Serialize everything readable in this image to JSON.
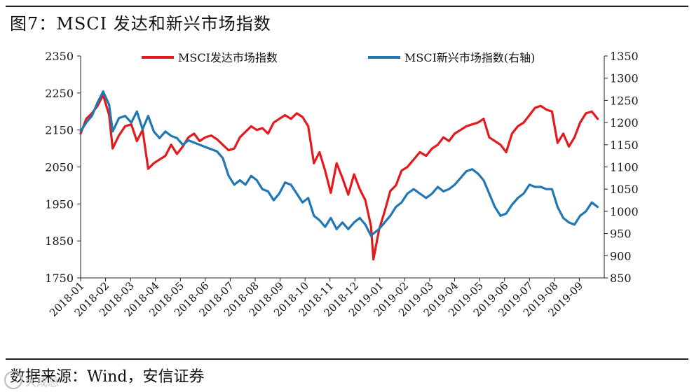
{
  "title": "图7：MSCI 发达和新兴市场指数",
  "source": "数据来源：Wind，安信证券",
  "watermark": "大成总",
  "chart_data": {
    "type": "line",
    "grid": false,
    "legend_position": "top",
    "left_axis": {
      "min": 1750,
      "max": 2350,
      "ticks": [
        1750,
        1850,
        1950,
        2050,
        2150,
        2250,
        2350
      ]
    },
    "right_axis": {
      "min": 850,
      "max": 1350,
      "ticks": [
        850,
        900,
        950,
        1000,
        1050,
        1100,
        1150,
        1200,
        1250,
        1300,
        1350
      ]
    },
    "x_start": "2018-01",
    "x_end": "2019-09",
    "x_tick_labels": [
      "2018-01",
      "2018-02",
      "2018-03",
      "2018-04",
      "2018-05",
      "2018-06",
      "2018-07",
      "2018-08",
      "2018-09",
      "2018-10",
      "2018-11",
      "2018-12",
      "2019-01",
      "2019-02",
      "2019-03",
      "2019-04",
      "2019-05",
      "2019-06",
      "2019-07",
      "2019-08",
      "2019-09"
    ],
    "series": [
      {
        "name": "MSCI发达市场指数",
        "axis": "left",
        "color": "#e3191b",
        "x": [
          "2018-01-01",
          "2018-01-08",
          "2018-01-15",
          "2018-01-22",
          "2018-01-29",
          "2018-02-05",
          "2018-02-09",
          "2018-02-16",
          "2018-02-23",
          "2018-03-02",
          "2018-03-09",
          "2018-03-16",
          "2018-03-23",
          "2018-03-30",
          "2018-04-06",
          "2018-04-13",
          "2018-04-20",
          "2018-04-27",
          "2018-05-04",
          "2018-05-11",
          "2018-05-18",
          "2018-05-25",
          "2018-06-01",
          "2018-06-08",
          "2018-06-15",
          "2018-06-22",
          "2018-06-29",
          "2018-07-06",
          "2018-07-13",
          "2018-07-20",
          "2018-07-27",
          "2018-08-03",
          "2018-08-10",
          "2018-08-17",
          "2018-08-24",
          "2018-08-31",
          "2018-09-07",
          "2018-09-14",
          "2018-09-21",
          "2018-09-28",
          "2018-10-05",
          "2018-10-12",
          "2018-10-19",
          "2018-10-26",
          "2018-11-02",
          "2018-11-09",
          "2018-11-16",
          "2018-11-23",
          "2018-11-30",
          "2018-12-07",
          "2018-12-14",
          "2018-12-21",
          "2018-12-24",
          "2018-12-31",
          "2019-01-07",
          "2019-01-14",
          "2019-01-21",
          "2019-01-28",
          "2019-02-04",
          "2019-02-11",
          "2019-02-18",
          "2019-02-25",
          "2019-03-04",
          "2019-03-11",
          "2019-03-18",
          "2019-03-25",
          "2019-04-01",
          "2019-04-08",
          "2019-04-15",
          "2019-04-22",
          "2019-04-29",
          "2019-05-06",
          "2019-05-13",
          "2019-05-20",
          "2019-05-27",
          "2019-06-03",
          "2019-06-10",
          "2019-06-17",
          "2019-06-24",
          "2019-07-01",
          "2019-07-08",
          "2019-07-15",
          "2019-07-22",
          "2019-07-29",
          "2019-08-05",
          "2019-08-12",
          "2019-08-19",
          "2019-08-26",
          "2019-09-02",
          "2019-09-09",
          "2019-09-16",
          "2019-09-23"
        ],
        "values": [
          2140,
          2180,
          2195,
          2215,
          2245,
          2190,
          2100,
          2135,
          2160,
          2165,
          2120,
          2150,
          2045,
          2060,
          2070,
          2080,
          2110,
          2085,
          2105,
          2130,
          2140,
          2120,
          2130,
          2135,
          2125,
          2110,
          2095,
          2100,
          2130,
          2145,
          2160,
          2150,
          2155,
          2140,
          2170,
          2180,
          2190,
          2180,
          2195,
          2185,
          2160,
          2060,
          2090,
          2040,
          1980,
          2060,
          2020,
          1975,
          2030,
          1990,
          1960,
          1890,
          1800,
          1880,
          1930,
          1985,
          2000,
          2040,
          2050,
          2070,
          2090,
          2080,
          2100,
          2110,
          2130,
          2120,
          2140,
          2150,
          2160,
          2165,
          2170,
          2180,
          2130,
          2120,
          2110,
          2090,
          2140,
          2160,
          2170,
          2190,
          2210,
          2215,
          2205,
          2200,
          2115,
          2140,
          2105,
          2130,
          2170,
          2195,
          2200,
          2180
        ]
      },
      {
        "name": "MSCI新兴市场指数(右轴)",
        "axis": "right",
        "color": "#1f77b4",
        "x": [
          "2018-01-01",
          "2018-01-08",
          "2018-01-15",
          "2018-01-22",
          "2018-01-29",
          "2018-02-05",
          "2018-02-09",
          "2018-02-16",
          "2018-02-23",
          "2018-03-02",
          "2018-03-09",
          "2018-03-16",
          "2018-03-23",
          "2018-03-30",
          "2018-04-06",
          "2018-04-13",
          "2018-04-20",
          "2018-04-27",
          "2018-05-04",
          "2018-05-11",
          "2018-05-18",
          "2018-05-25",
          "2018-06-01",
          "2018-06-08",
          "2018-06-15",
          "2018-06-22",
          "2018-06-29",
          "2018-07-06",
          "2018-07-13",
          "2018-07-20",
          "2018-07-27",
          "2018-08-03",
          "2018-08-10",
          "2018-08-17",
          "2018-08-24",
          "2018-08-31",
          "2018-09-07",
          "2018-09-14",
          "2018-09-21",
          "2018-09-28",
          "2018-10-05",
          "2018-10-12",
          "2018-10-19",
          "2018-10-26",
          "2018-11-02",
          "2018-11-09",
          "2018-11-16",
          "2018-11-23",
          "2018-11-30",
          "2018-12-07",
          "2018-12-14",
          "2018-12-21",
          "2018-12-24",
          "2018-12-31",
          "2019-01-07",
          "2019-01-14",
          "2019-01-21",
          "2019-01-28",
          "2019-02-04",
          "2019-02-11",
          "2019-02-18",
          "2019-02-25",
          "2019-03-04",
          "2019-03-11",
          "2019-03-18",
          "2019-03-25",
          "2019-04-01",
          "2019-04-08",
          "2019-04-15",
          "2019-04-22",
          "2019-04-29",
          "2019-05-06",
          "2019-05-13",
          "2019-05-20",
          "2019-05-27",
          "2019-06-03",
          "2019-06-10",
          "2019-06-17",
          "2019-06-24",
          "2019-07-01",
          "2019-07-08",
          "2019-07-15",
          "2019-07-22",
          "2019-07-29",
          "2019-08-05",
          "2019-08-12",
          "2019-08-19",
          "2019-08-26",
          "2019-09-02",
          "2019-09-09",
          "2019-09-16",
          "2019-09-23"
        ],
        "values": [
          1180,
          1200,
          1215,
          1245,
          1270,
          1240,
          1180,
          1210,
          1215,
          1200,
          1225,
          1185,
          1215,
          1180,
          1165,
          1180,
          1170,
          1165,
          1150,
          1160,
          1155,
          1150,
          1145,
          1140,
          1135,
          1120,
          1080,
          1060,
          1070,
          1060,
          1080,
          1070,
          1050,
          1045,
          1025,
          1040,
          1065,
          1060,
          1040,
          1020,
          1030,
          990,
          980,
          965,
          985,
          960,
          975,
          960,
          975,
          985,
          970,
          945,
          950,
          960,
          975,
          990,
          1010,
          1020,
          1040,
          1050,
          1040,
          1030,
          1040,
          1055,
          1045,
          1050,
          1060,
          1075,
          1090,
          1095,
          1085,
          1070,
          1040,
          1010,
          990,
          995,
          1015,
          1030,
          1040,
          1060,
          1055,
          1055,
          1050,
          1050,
          1010,
          985,
          975,
          970,
          990,
          1000,
          1020,
          1010
        ]
      }
    ]
  }
}
